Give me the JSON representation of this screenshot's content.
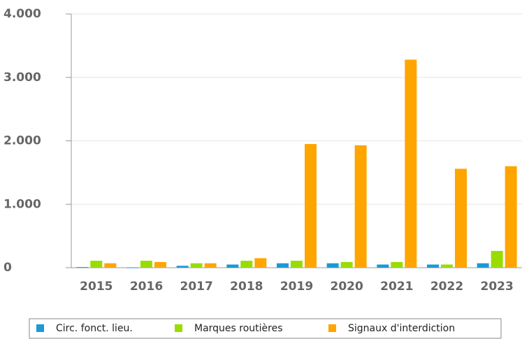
{
  "chart_data": {
    "type": "bar",
    "categories": [
      "2015",
      "2016",
      "2017",
      "2018",
      "2019",
      "2020",
      "2021",
      "2022",
      "2023"
    ],
    "series": [
      {
        "name": "Circ. fonct. lieu.",
        "color": "#1a9ad6",
        "values": [
          10,
          5,
          30,
          50,
          70,
          70,
          50,
          50,
          70
        ]
      },
      {
        "name": "Marques routières",
        "color": "#99dd00",
        "values": [
          110,
          110,
          70,
          110,
          110,
          90,
          90,
          50,
          265
        ]
      },
      {
        "name": "Signaux d'interdiction",
        "color": "#ffa500",
        "values": [
          70,
          90,
          70,
          150,
          1950,
          1930,
          3280,
          1560,
          1600
        ]
      }
    ],
    "ylim": [
      0,
      4000
    ],
    "yticks": [
      0,
      {
        "value": 1000,
        "label": "1.000"
      },
      {
        "value": 2000,
        "label": "2.000"
      },
      {
        "value": 3000,
        "label": "3.000"
      },
      {
        "value": 4000,
        "label": "4.000"
      }
    ],
    "grid": true,
    "legend": "bottom"
  }
}
